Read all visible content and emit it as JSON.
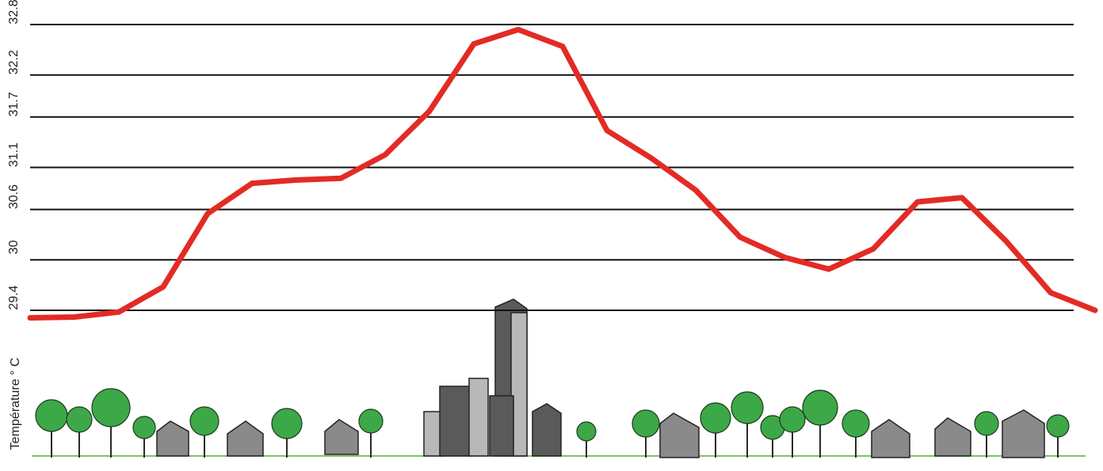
{
  "chart_data": {
    "type": "line",
    "y_label": "Température ° C",
    "ylim": [
      29.4,
      32.8
    ],
    "yticks": [
      29.4,
      30,
      30.6,
      31.1,
      31.7,
      32.2,
      32.8
    ],
    "grid": true,
    "color": "#e32b25",
    "values": [
      29.31,
      29.32,
      29.38,
      29.68,
      30.55,
      30.91,
      30.95,
      30.97,
      31.25,
      31.77,
      32.57,
      32.74,
      32.54,
      31.54,
      31.21,
      30.83,
      30.27,
      30.03,
      29.89,
      30.13,
      30.69,
      30.74,
      30.22,
      29.61,
      29.4
    ]
  }
}
